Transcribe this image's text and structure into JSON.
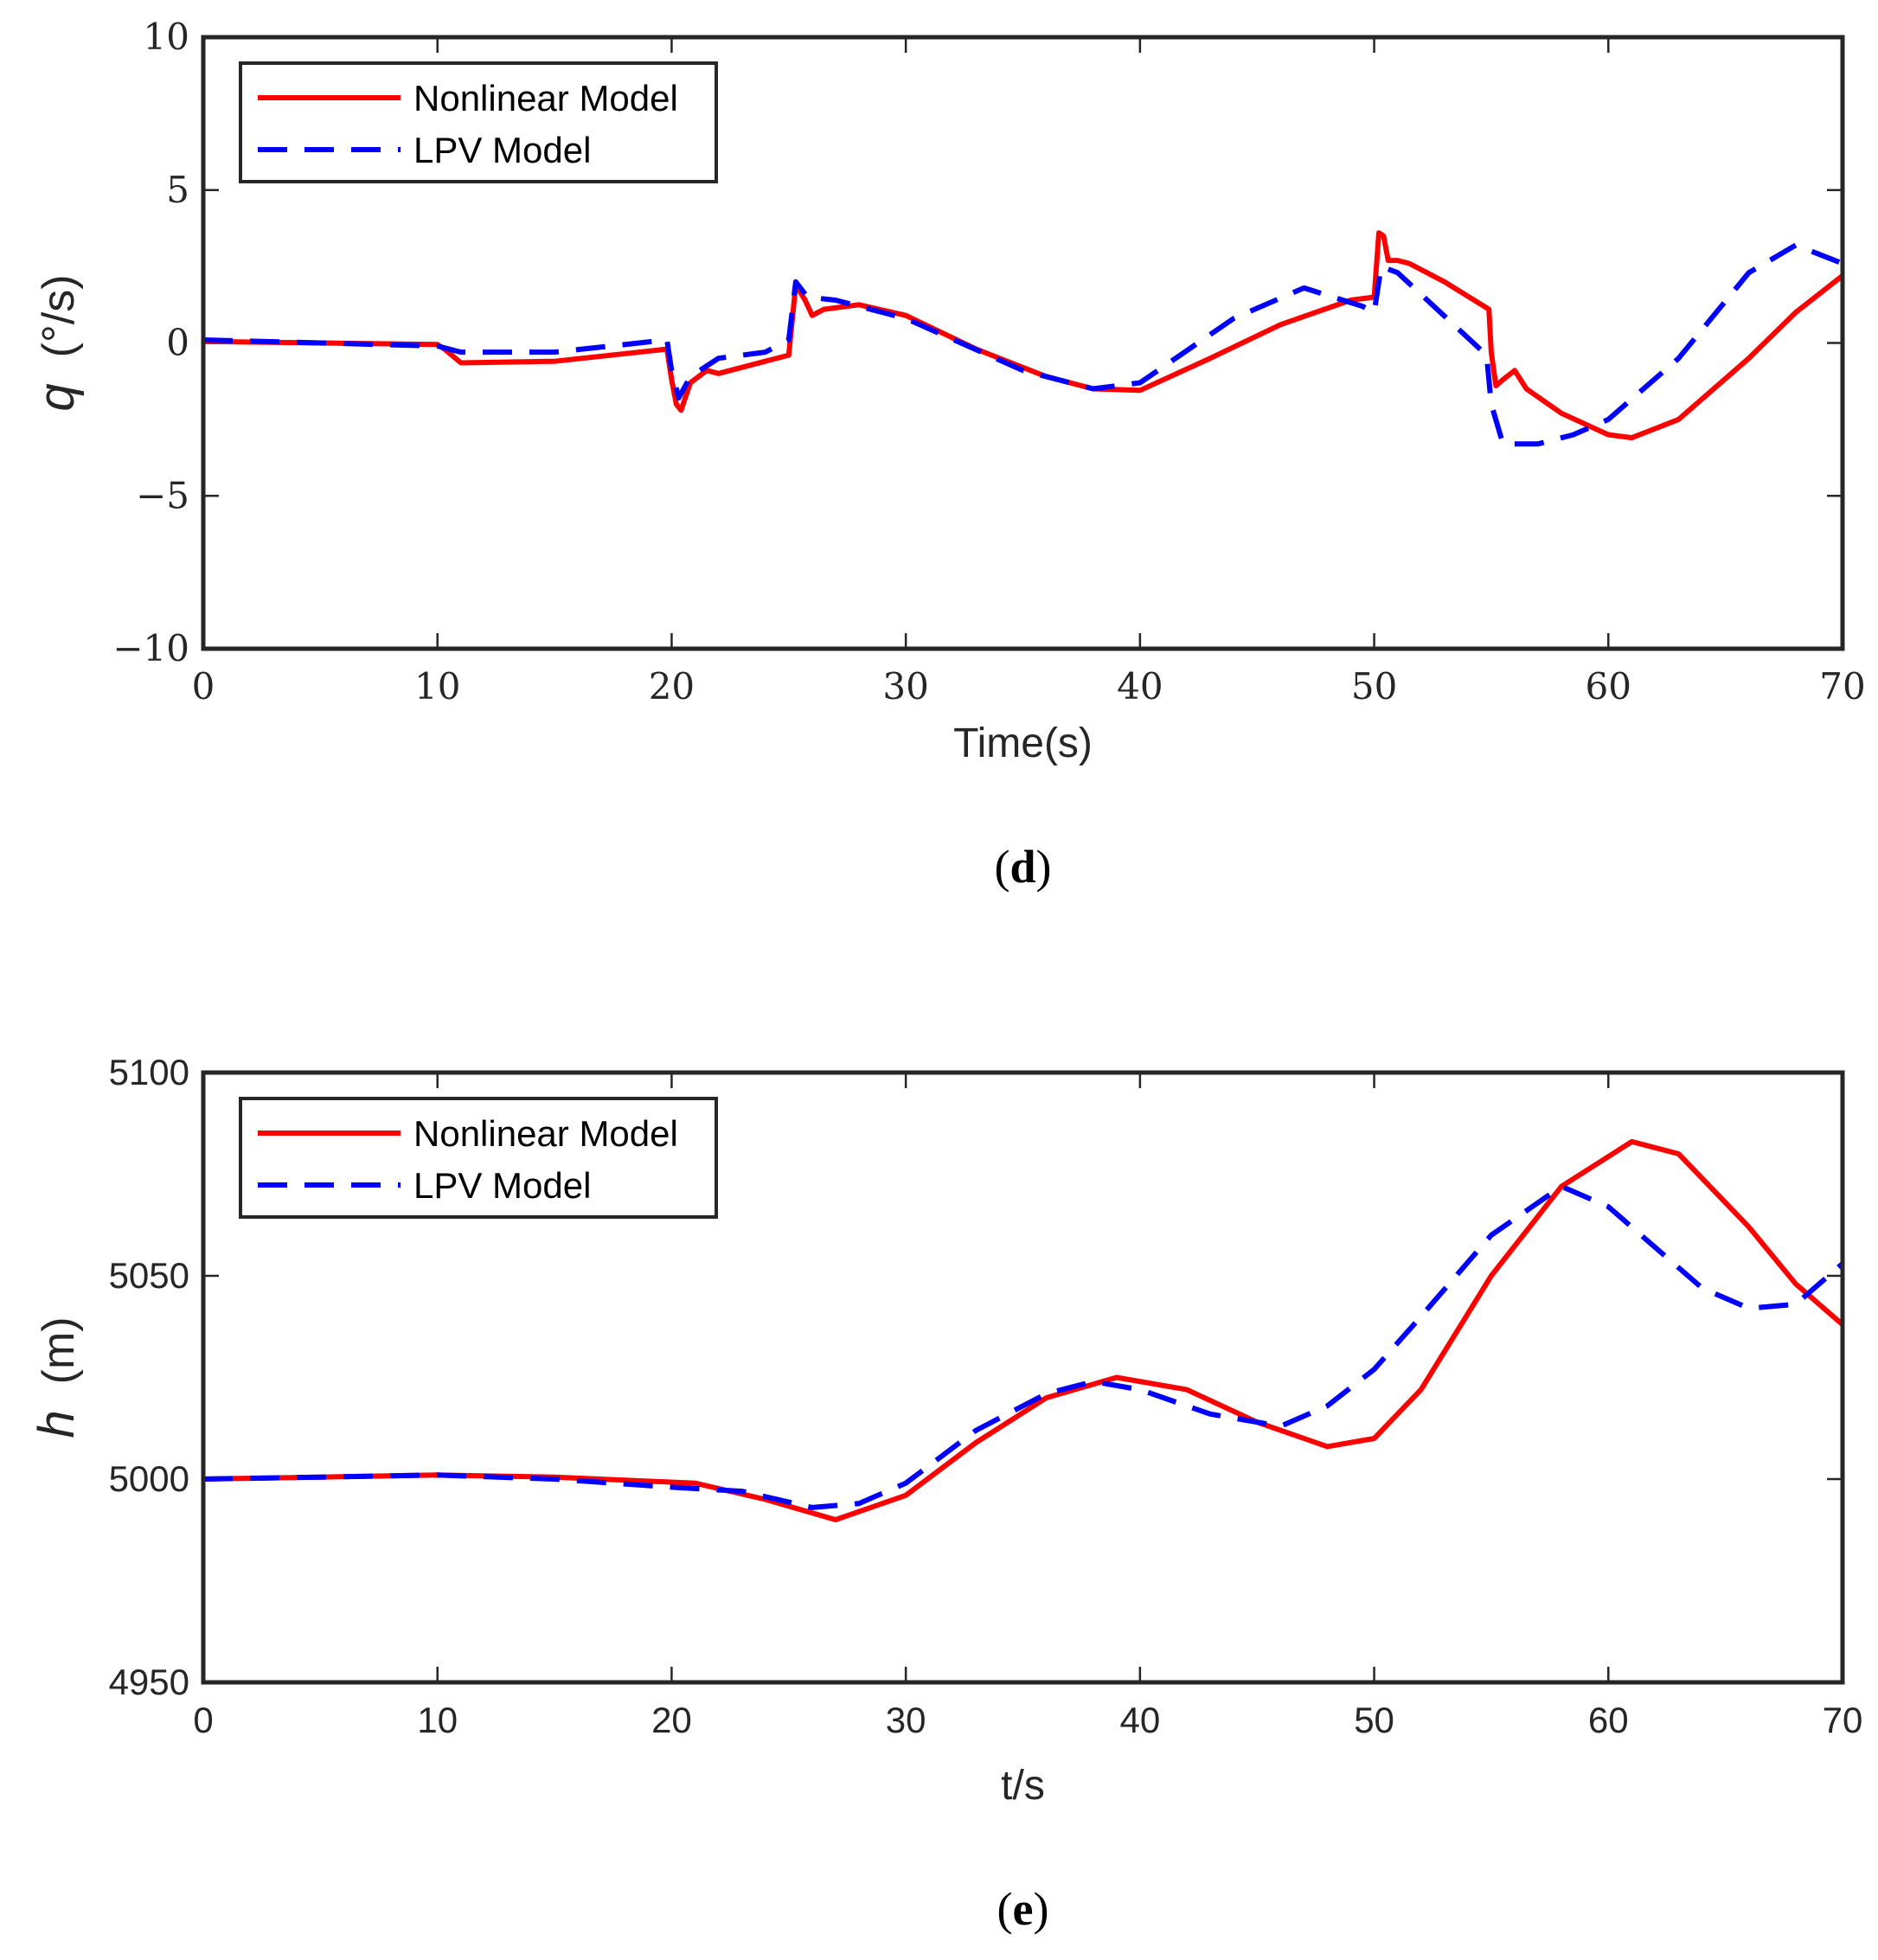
{
  "colors": {
    "nonlinear": "#ff0000",
    "lpv": "#0000ff",
    "axes": "#262626",
    "text": "#262626"
  },
  "chart_data": [
    {
      "type": "line",
      "caption": "(d)",
      "caption_letter": "d",
      "xlabel": "Time(s)",
      "ylabel_var": "q",
      "ylabel_unit": "(°/s)",
      "xlim": [
        0,
        70
      ],
      "ylim": [
        -10,
        10
      ],
      "xticks": [
        0,
        10,
        20,
        30,
        40,
        50,
        60,
        70
      ],
      "xtick_labels": [
        "0",
        "10",
        "20",
        "30",
        "40",
        "50",
        "60",
        "70"
      ],
      "yticks": [
        -10,
        -5,
        0,
        5,
        10
      ],
      "ytick_labels": [
        "−10",
        "−5",
        "0",
        "5",
        "10"
      ],
      "legend_position": "top-left",
      "series": [
        {
          "name": "Nonlinear Model",
          "style": "solid",
          "x": [
            0,
            5,
            10,
            10.3,
            11,
            15,
            19.8,
            20,
            20.2,
            20.4,
            20.8,
            21.5,
            22,
            24,
            25,
            25.3,
            25.7,
            26,
            26.5,
            28,
            30,
            33,
            36,
            38,
            40,
            43,
            46,
            49,
            50,
            50.2,
            50.4,
            50.6,
            51,
            51.5,
            53,
            54.9,
            55,
            55.2,
            55.5,
            56,
            56.5,
            58,
            60,
            61,
            63,
            66,
            68,
            70
          ],
          "y": [
            0.05,
            0,
            -0.05,
            -0.2,
            -0.65,
            -0.6,
            -0.2,
            -1.2,
            -2,
            -2.2,
            -1.3,
            -0.9,
            -1.0,
            -0.6,
            -0.4,
            1.9,
            1.4,
            0.9,
            1.1,
            1.25,
            0.9,
            -0.2,
            -1.1,
            -1.5,
            -1.55,
            -0.5,
            0.6,
            1.4,
            1.5,
            3.6,
            3.5,
            2.7,
            2.7,
            2.6,
            2.0,
            1.1,
            -0.3,
            -1.4,
            -1.2,
            -0.9,
            -1.5,
            -2.3,
            -3.0,
            -3.1,
            -2.5,
            -0.5,
            1.0,
            2.2
          ]
        },
        {
          "name": "LPV Model",
          "style": "dashed",
          "x": [
            0,
            5,
            10,
            11,
            15,
            19.8,
            20,
            20.3,
            20.8,
            22,
            24,
            25,
            25.3,
            25.8,
            27,
            30,
            35,
            38,
            40,
            44,
            47,
            49.5,
            50,
            50.3,
            51,
            54.8,
            55,
            55.5,
            57,
            58.5,
            60,
            63,
            66,
            68,
            70
          ],
          "y": [
            0.1,
            0,
            -0.1,
            -0.3,
            -0.3,
            0.1,
            -0.9,
            -1.8,
            -1.1,
            -0.5,
            -0.3,
            0.1,
            2.0,
            1.5,
            1.4,
            0.8,
            -0.9,
            -1.5,
            -1.3,
            0.8,
            1.8,
            1.2,
            1.0,
            2.5,
            2.3,
            -0.4,
            -2.0,
            -3.3,
            -3.3,
            -3.0,
            -2.5,
            -0.5,
            2.3,
            3.2,
            2.6
          ]
        }
      ]
    },
    {
      "type": "line",
      "caption": "(e)",
      "caption_letter": "e",
      "xlabel": "t/s",
      "ylabel_var": "h",
      "ylabel_unit": "(m)",
      "xlim": [
        0,
        70
      ],
      "ylim": [
        4950,
        5100
      ],
      "xticks": [
        0,
        10,
        20,
        30,
        40,
        50,
        60,
        70
      ],
      "xtick_labels": [
        "0",
        "10",
        "20",
        "30",
        "40",
        "50",
        "60",
        "70"
      ],
      "yticks": [
        4950,
        5000,
        5050,
        5100
      ],
      "ytick_labels": [
        "4950",
        "5000",
        "5050",
        "5100"
      ],
      "legend_position": "top-left",
      "series": [
        {
          "name": "Nonlinear Model",
          "style": "solid",
          "x": [
            0,
            5,
            10,
            15,
            21,
            24,
            27,
            30,
            33,
            36,
            39,
            42,
            45,
            48,
            50,
            52,
            55,
            58,
            61,
            63,
            66,
            68,
            70
          ],
          "y": [
            5000,
            5000.5,
            5001,
            5000.5,
            4999,
            4995,
            4990,
            4996,
            5009,
            5020,
            5025,
            5022,
            5014,
            5008,
            5010,
            5022,
            5050,
            5072,
            5083,
            5080,
            5062,
            5048,
            5038
          ]
        },
        {
          "name": "LPV Model",
          "style": "dashed",
          "x": [
            0,
            5,
            10,
            15,
            20,
            23,
            26,
            28,
            30,
            33,
            36,
            38,
            40,
            43,
            46,
            48,
            50,
            52,
            55,
            58,
            60,
            62,
            64,
            66,
            68,
            70
          ],
          "y": [
            5000,
            5000.5,
            5001,
            5000,
            4998,
            4997,
            4993,
            4994,
            4999,
            5012,
            5021,
            5024,
            5022,
            5016,
            5013,
            5018,
            5027,
            5040,
            5060,
            5072,
            5067,
            5057,
            5047,
            5042,
            5043,
            5053
          ]
        }
      ]
    }
  ]
}
